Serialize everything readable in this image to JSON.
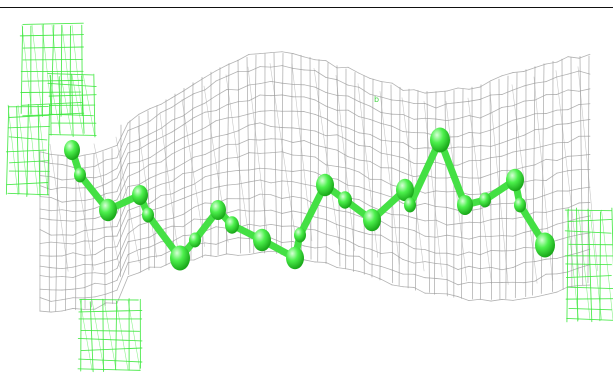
{
  "viewer": {
    "label": "b"
  },
  "colors": {
    "background": "#ffffff",
    "density_mesh": "#9a9a9a",
    "difference_mesh": "#3ee83e",
    "atom_fill": "#3ee83e",
    "atom_highlight": "#c9ffc9",
    "bond": "#44e044",
    "frame_rule": "#111111"
  },
  "icons": [
    "grey-density-mesh-icon",
    "green-difference-mesh-icon",
    "ball-and-stick-chain-icon"
  ]
}
